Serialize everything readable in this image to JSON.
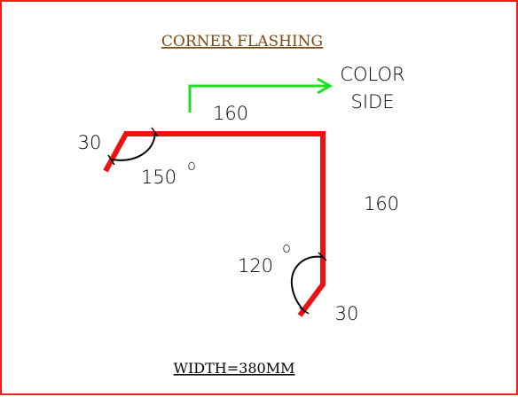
{
  "title": "CORNER FLASHING",
  "color_side": {
    "line1": "COLOR",
    "line2": "SIDE"
  },
  "dimensions": {
    "top_edge": "160",
    "right_edge": "160",
    "top_hem": "30",
    "bottom_hem": "30"
  },
  "angles": {
    "top_left": "150",
    "bottom_right": "120",
    "degree_symbol": "o"
  },
  "width_note": "WIDTH=380MM",
  "colors": {
    "border": "#ff1a1a",
    "profile": "#ee1111",
    "arrow": "#22dd22",
    "title": "#7a4a16"
  }
}
